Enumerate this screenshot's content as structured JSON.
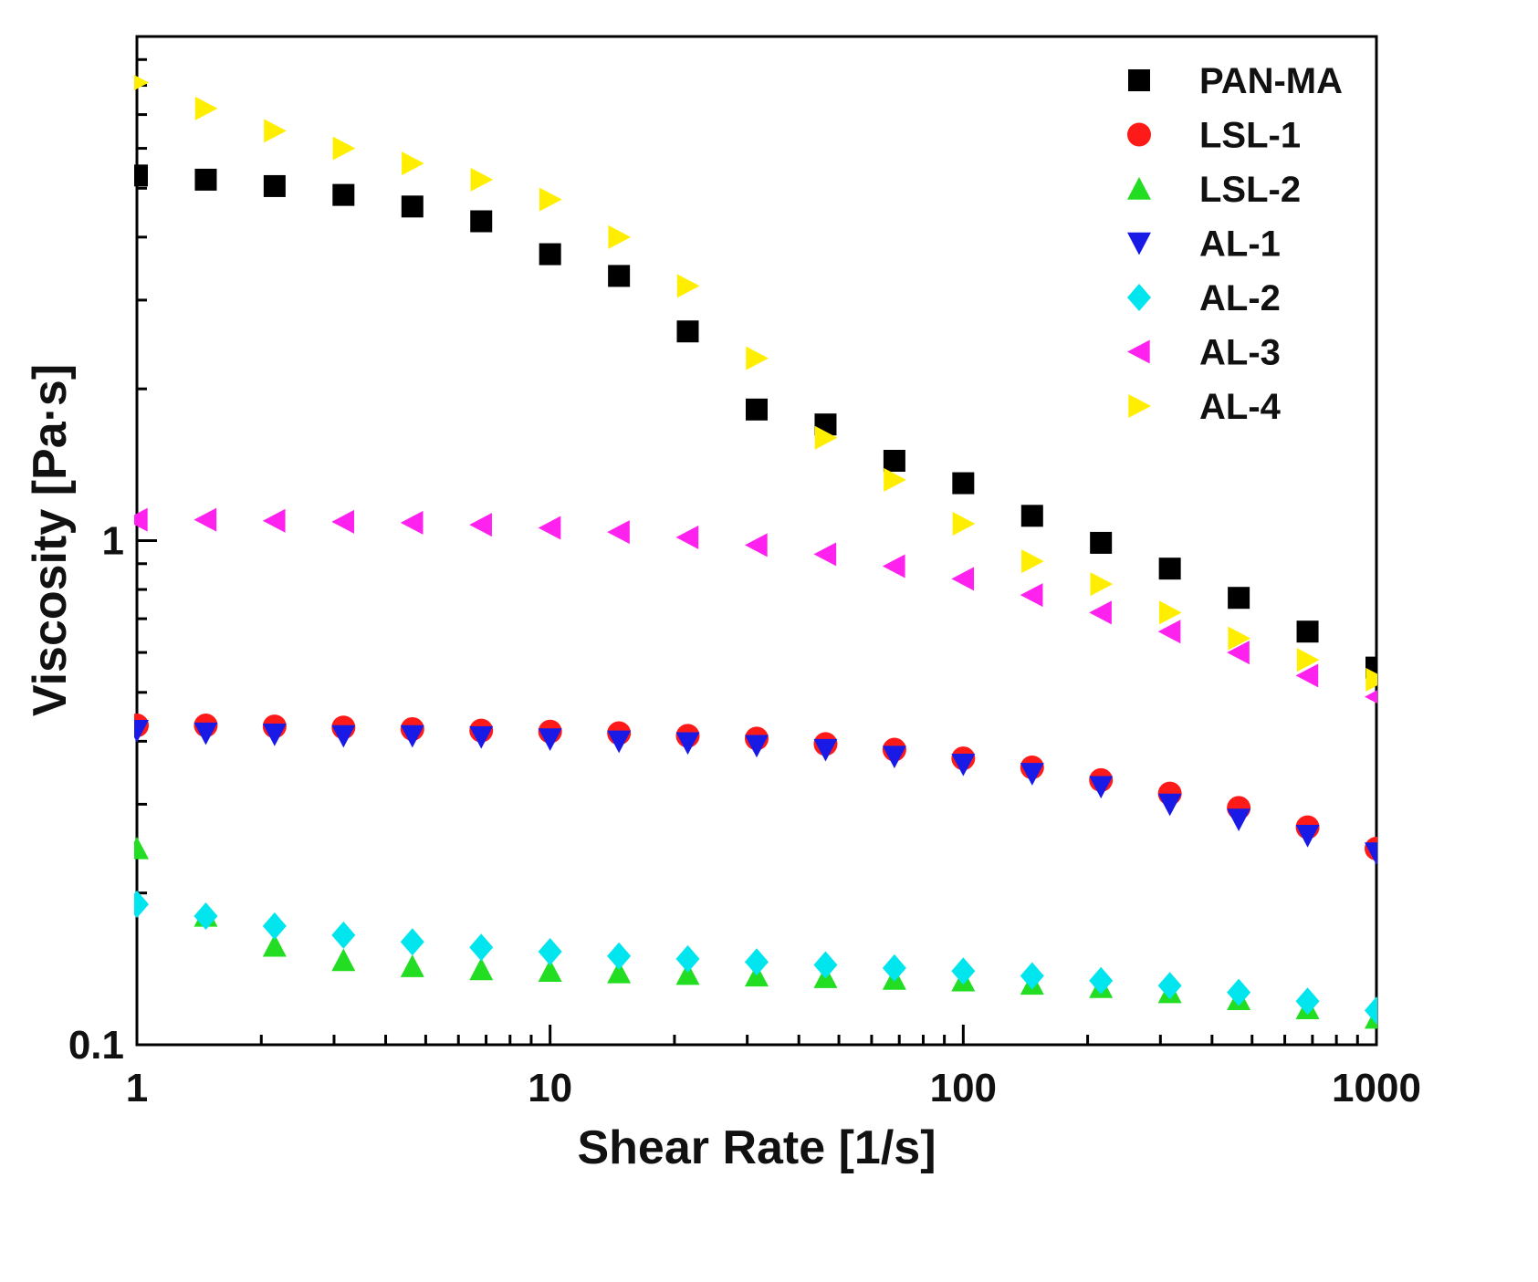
{
  "chart_data": {
    "type": "scatter",
    "title": "",
    "xlabel": "Shear Rate [1/s]",
    "ylabel": "Viscosity [Pa·s]",
    "xscale": "log",
    "yscale": "log",
    "xlim": [
      1,
      1000
    ],
    "ylim": [
      0.1,
      10
    ],
    "xticks": [
      {
        "value": 1,
        "label": "1"
      },
      {
        "value": 10,
        "label": "10"
      },
      {
        "value": 100,
        "label": "100"
      },
      {
        "value": 1000,
        "label": "1000"
      }
    ],
    "yticks": [
      {
        "value": 0.1,
        "label": "0.1"
      },
      {
        "value": 1,
        "label": "1"
      }
    ],
    "legend_position": "top-right",
    "grid": false,
    "x": [
      1,
      1.468,
      2.154,
      3.162,
      4.642,
      6.813,
      10,
      14.68,
      21.54,
      31.62,
      46.42,
      68.13,
      100,
      146.8,
      215.4,
      316.2,
      464.2,
      681.3,
      1000
    ],
    "series": [
      {
        "name": "PAN-MA",
        "marker": "square",
        "color": "#000000",
        "values": [
          5.3,
          5.2,
          5.05,
          4.85,
          4.6,
          4.3,
          3.7,
          3.35,
          2.6,
          1.82,
          1.7,
          1.44,
          1.3,
          1.12,
          0.99,
          0.88,
          0.77,
          0.66,
          0.56
        ]
      },
      {
        "name": "LSL-1",
        "marker": "circle",
        "color": "#ff1a1a",
        "values": [
          0.43,
          0.43,
          0.428,
          0.426,
          0.423,
          0.42,
          0.418,
          0.415,
          0.41,
          0.405,
          0.395,
          0.385,
          0.37,
          0.355,
          0.335,
          0.315,
          0.295,
          0.27,
          0.245
        ]
      },
      {
        "name": "LSL-2",
        "marker": "triangle-up",
        "color": "#22dd22",
        "values": [
          0.245,
          0.18,
          0.157,
          0.147,
          0.143,
          0.141,
          0.14,
          0.139,
          0.138,
          0.137,
          0.136,
          0.135,
          0.134,
          0.132,
          0.13,
          0.127,
          0.123,
          0.118,
          0.113
        ]
      },
      {
        "name": "AL-1",
        "marker": "triangle-down",
        "color": "#1a1ae6",
        "values": [
          0.42,
          0.415,
          0.413,
          0.41,
          0.41,
          0.408,
          0.404,
          0.4,
          0.397,
          0.392,
          0.385,
          0.373,
          0.36,
          0.345,
          0.325,
          0.3,
          0.28,
          0.26,
          0.24
        ]
      },
      {
        "name": "AL-2",
        "marker": "diamond",
        "color": "#00e5ee",
        "values": [
          0.19,
          0.18,
          0.172,
          0.165,
          0.16,
          0.156,
          0.153,
          0.15,
          0.148,
          0.146,
          0.144,
          0.142,
          0.14,
          0.137,
          0.134,
          0.131,
          0.127,
          0.122,
          0.117
        ]
      },
      {
        "name": "AL-3",
        "marker": "triangle-left",
        "color": "#ff22ee",
        "values": [
          1.1,
          1.1,
          1.095,
          1.09,
          1.085,
          1.075,
          1.06,
          1.04,
          1.015,
          0.98,
          0.94,
          0.89,
          0.84,
          0.78,
          0.72,
          0.66,
          0.6,
          0.54,
          0.49
        ]
      },
      {
        "name": "AL-4",
        "marker": "triangle-right",
        "color": "#ffee00",
        "values": [
          8.1,
          7.2,
          6.5,
          6.0,
          5.6,
          5.2,
          4.75,
          4.0,
          3.2,
          2.3,
          1.6,
          1.32,
          1.08,
          0.91,
          0.82,
          0.72,
          0.64,
          0.58,
          0.53
        ]
      }
    ]
  }
}
